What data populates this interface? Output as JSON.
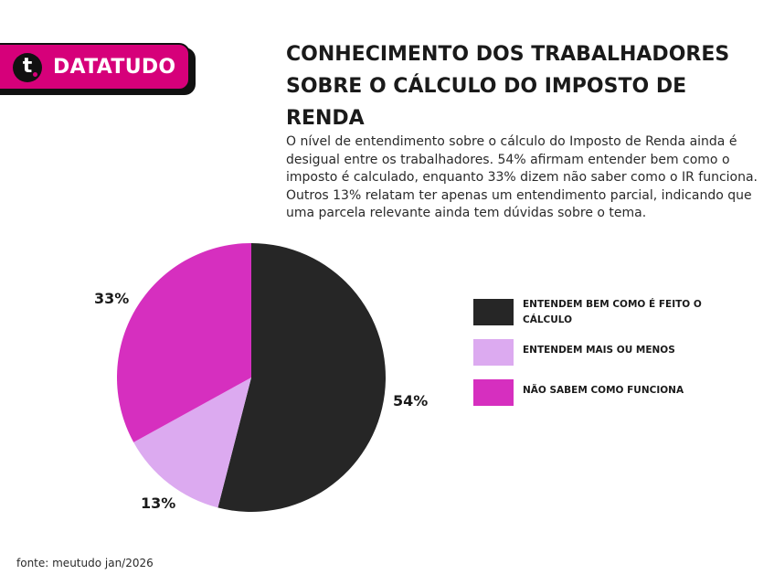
{
  "brand": {
    "name": "DATATUDO",
    "icon_letter": "t",
    "icon": "datatudo-logo-icon",
    "color": "#d6007a"
  },
  "header": {
    "title": "CONHECIMENTO DOS TRABALHADORES SOBRE O CÁLCULO DO IMPOSTO DE RENDA",
    "description": "O nível de entendimento sobre o cálculo do Imposto de Renda ainda é desigual entre os trabalhadores. 54% afirmam entender bem como o imposto é calculado, enquanto 33% dizem não saber como o IR funciona. Outros 13% relatam ter apenas um entendimento parcial, indicando que uma parcela relevante ainda tem dúvidas sobre o tema."
  },
  "chart_data": {
    "type": "pie",
    "title": "CONHECIMENTO DOS TRABALHADORES SOBRE O CÁLCULO DO IMPOSTO DE RENDA",
    "categories": [
      "ENTENDEM BEM COMO É FEITO O CÁLCULO",
      "ENTENDEM MAIS OU MENOS",
      "NÃO SABEM COMO FUNCIONA"
    ],
    "values": [
      54,
      13,
      33
    ],
    "labels": [
      "54%",
      "13%",
      "33%"
    ],
    "colors": [
      "#262626",
      "#dcaaf0",
      "#d62fbf"
    ],
    "legend_position": "right"
  },
  "footer": {
    "source": "fonte: meutudo jan/2026"
  }
}
